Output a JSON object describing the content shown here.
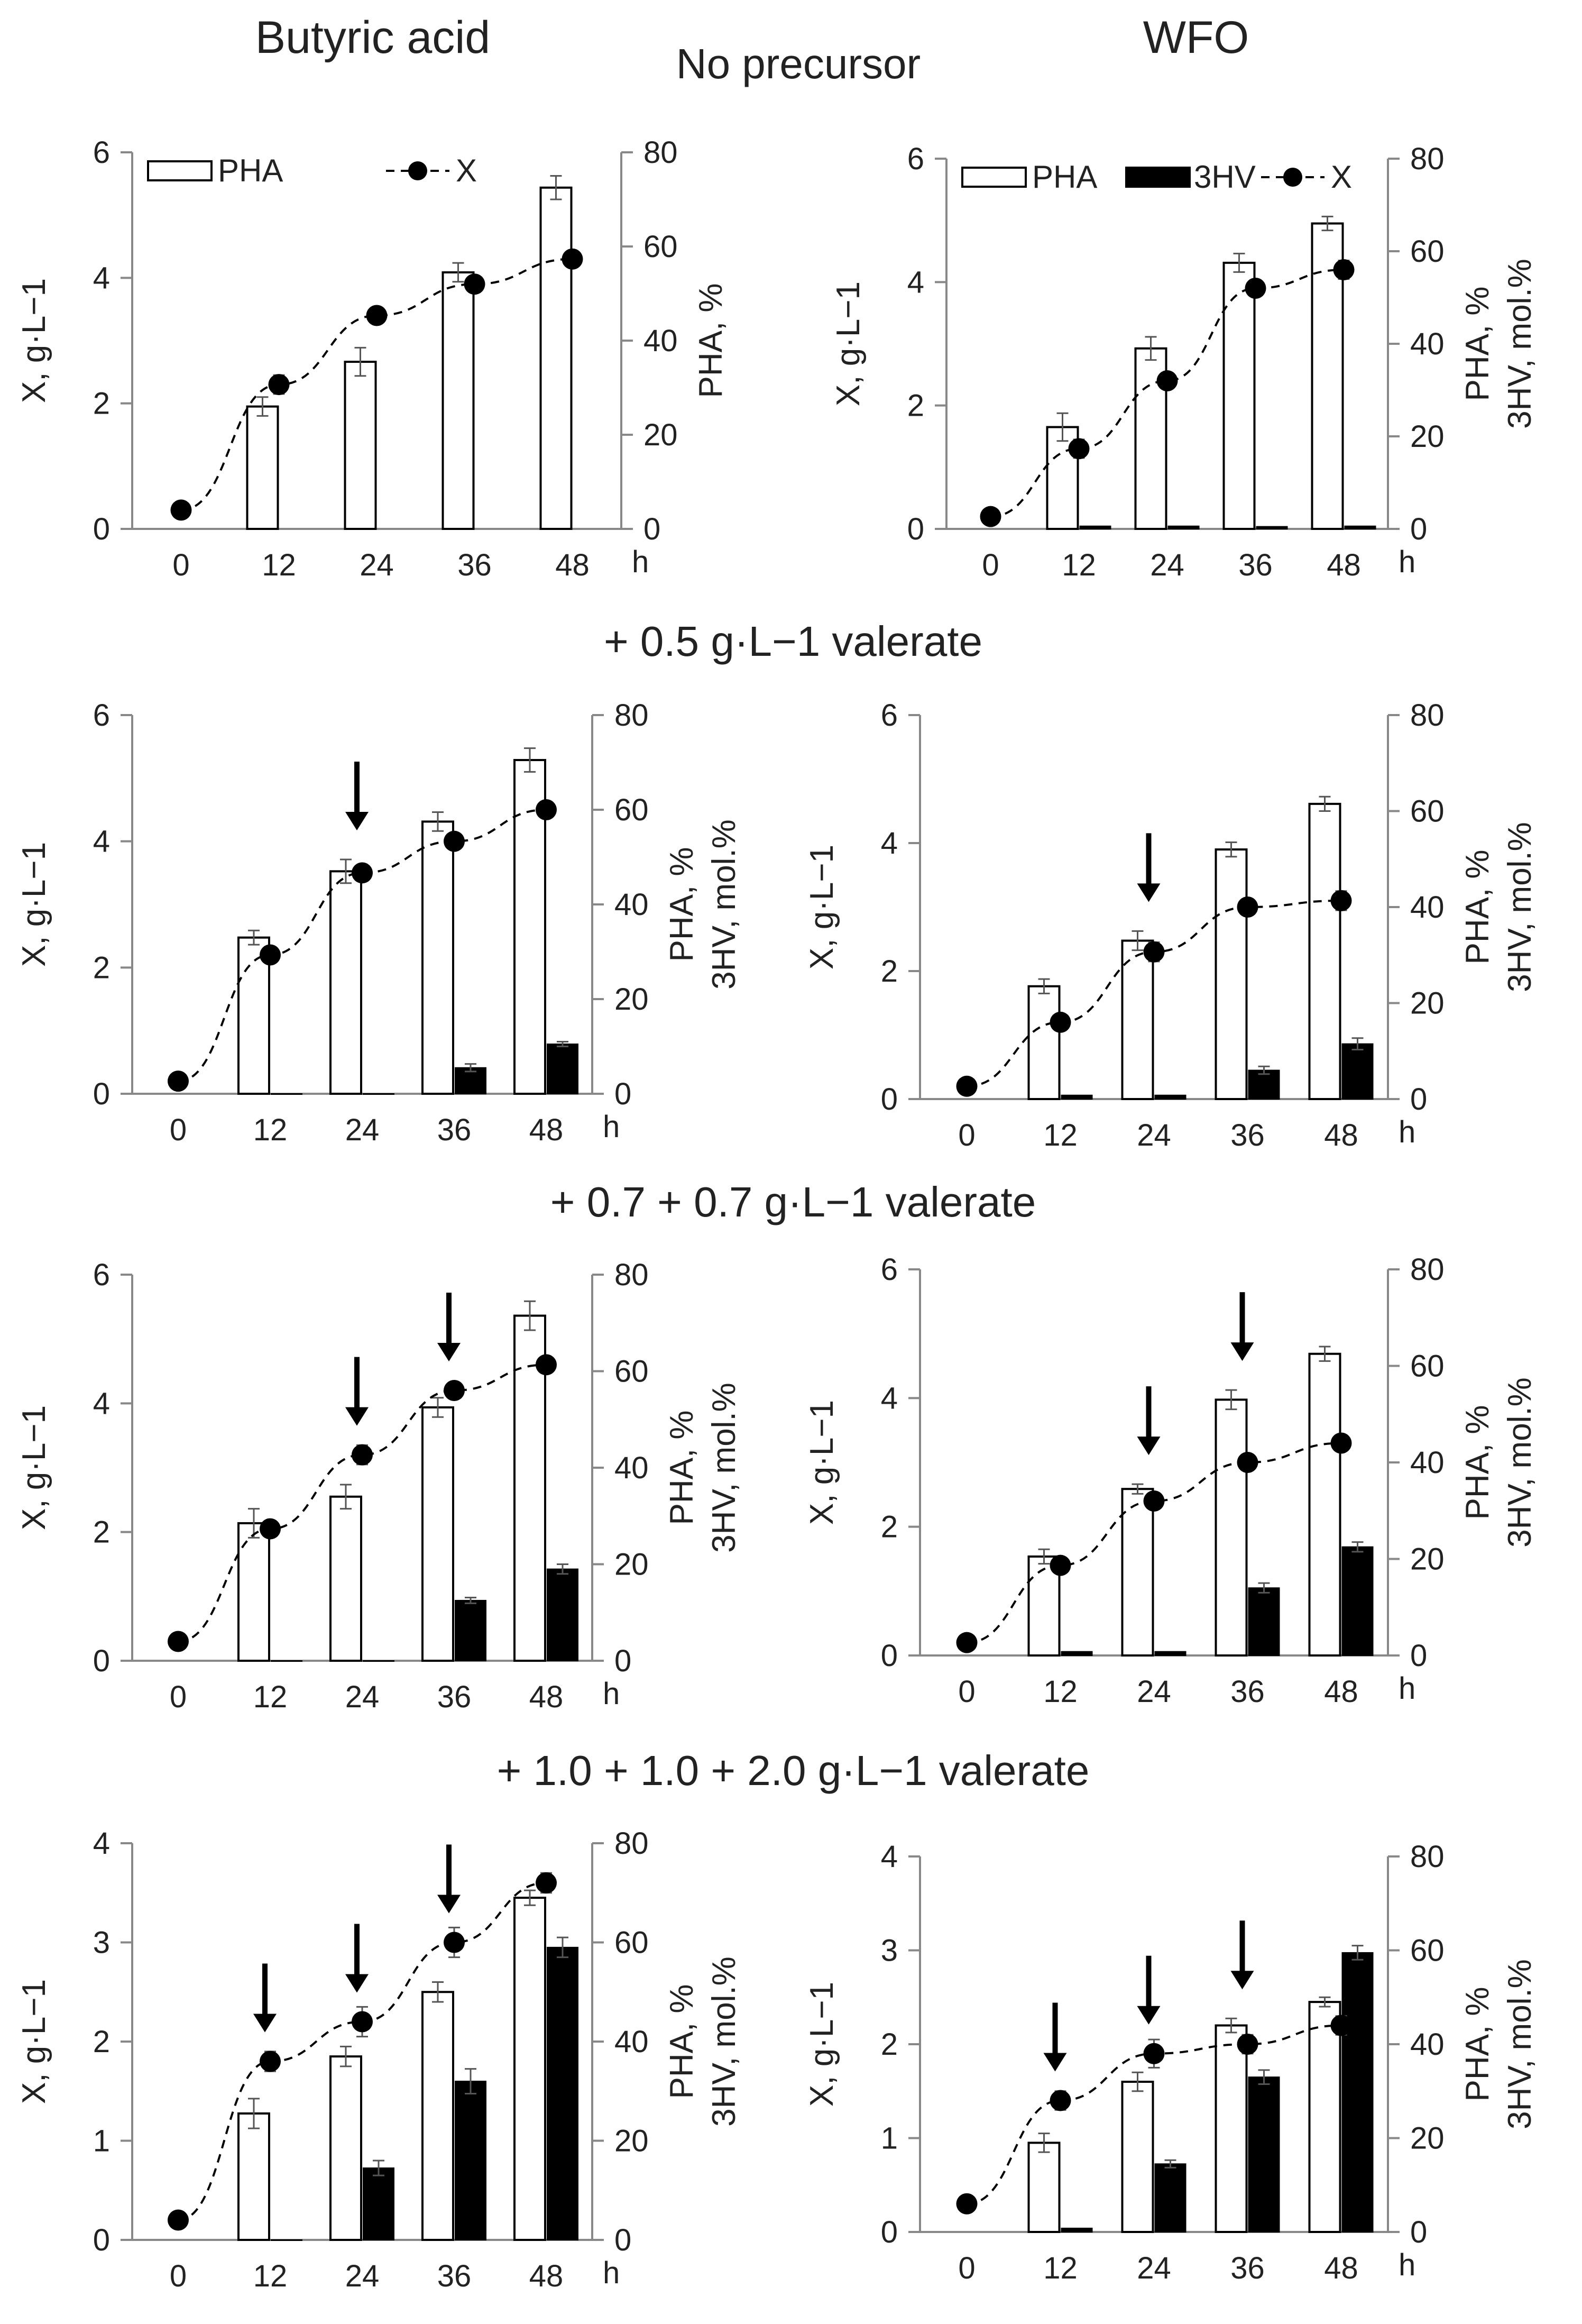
{
  "header": {
    "left_column": "Butyric acid",
    "middle": "No precursor",
    "right_column": "WFO"
  },
  "section_titles": [
    "+ 0.5 g·L−1 valerate",
    "+ 0.7 + 0.7 g·L−1 valerate",
    "+ 1.0 + 1.0 + 2.0 g·L−1 valerate"
  ],
  "legends": {
    "pha": "PHA",
    "hv": "3HV",
    "x": "X"
  },
  "colors": {
    "pha_fill": "#ffffff",
    "hv_fill": "#000000",
    "x_marker": "#000000",
    "axis": "#888888"
  },
  "chart_data": [
    {
      "type": "bar",
      "panel": "butyric-no-precursor",
      "categories": [
        "0",
        "12",
        "24",
        "36",
        "48"
      ],
      "x_unit": "h",
      "ylabel_left": "X, g·L−1",
      "ylabel_right": [
        "PHA, %"
      ],
      "ylim_left": [
        0,
        6
      ],
      "yticks_left": [
        0,
        2,
        4,
        6
      ],
      "ylim_right": [
        0,
        80
      ],
      "yticks_right": [
        0,
        20,
        40,
        60,
        80
      ],
      "legend": [
        "PHA",
        "X"
      ],
      "series": [
        {
          "name": "PHA",
          "axis": "right",
          "kind": "bar-open",
          "values": [
            null,
            26,
            35.5,
            54.5,
            72.5
          ],
          "errors": [
            0,
            2,
            3,
            2,
            2.5
          ]
        },
        {
          "name": "X",
          "axis": "left",
          "kind": "line-dashed-markers",
          "values": [
            0.3,
            2.3,
            3.4,
            3.9,
            4.3
          ],
          "errors": [
            0,
            0.15,
            0.12,
            0.1,
            0.1
          ]
        }
      ],
      "arrows": []
    },
    {
      "type": "bar",
      "panel": "wfo-no-precursor",
      "categories": [
        "0",
        "12",
        "24",
        "36",
        "48"
      ],
      "x_unit": "h",
      "ylabel_left": "X, g·L−1",
      "ylabel_right": [
        "PHA, %",
        "3HV, mol.%"
      ],
      "ylim_left": [
        0,
        6
      ],
      "yticks_left": [
        0,
        2,
        4,
        6
      ],
      "ylim_right": [
        0,
        80
      ],
      "yticks_right": [
        0,
        20,
        40,
        60,
        80
      ],
      "legend": [
        "PHA",
        "3HV",
        "X"
      ],
      "series": [
        {
          "name": "PHA",
          "axis": "right",
          "kind": "bar-open",
          "values": [
            null,
            22,
            39,
            57.5,
            66
          ],
          "errors": [
            0,
            3,
            2.5,
            2,
            1.5
          ]
        },
        {
          "name": "3HV",
          "axis": "right",
          "kind": "bar-filled",
          "values": [
            null,
            0.6,
            0.6,
            0.5,
            0.6
          ],
          "errors": [
            0,
            0,
            0,
            0,
            0
          ]
        },
        {
          "name": "X",
          "axis": "left",
          "kind": "line-dashed-markers",
          "values": [
            0.2,
            1.3,
            2.4,
            3.9,
            4.2
          ],
          "errors": [
            0,
            0.15,
            0.12,
            0.1,
            0.15
          ]
        }
      ],
      "arrows": []
    },
    {
      "type": "bar",
      "panel": "butyric-0.5-valerate",
      "categories": [
        "0",
        "12",
        "24",
        "36",
        "48"
      ],
      "x_unit": "h",
      "ylabel_left": "X, g·L−1",
      "ylabel_right": [
        "PHA, %",
        "3HV, mol.%"
      ],
      "ylim_left": [
        0,
        6
      ],
      "yticks_left": [
        0,
        2,
        4,
        6
      ],
      "ylim_right": [
        0,
        80
      ],
      "yticks_right": [
        0,
        20,
        40,
        60,
        80
      ],
      "legend": [],
      "series": [
        {
          "name": "PHA",
          "axis": "right",
          "kind": "bar-open",
          "values": [
            null,
            33,
            47,
            57.5,
            70.5
          ],
          "errors": [
            0,
            1.5,
            2.5,
            2,
            2.5
          ]
        },
        {
          "name": "3HV",
          "axis": "right",
          "kind": "bar-filled",
          "values": [
            null,
            0,
            0,
            5.5,
            10.5
          ],
          "errors": [
            0,
            0,
            0,
            0.8,
            0.5
          ]
        },
        {
          "name": "X",
          "axis": "left",
          "kind": "line-dashed-markers",
          "values": [
            0.2,
            2.2,
            3.5,
            4.0,
            4.5
          ],
          "errors": [
            0,
            0.1,
            0.1,
            0.1,
            0.1
          ]
        }
      ],
      "arrows": [
        "24"
      ]
    },
    {
      "type": "bar",
      "panel": "wfo-0.5-valerate",
      "categories": [
        "0",
        "12",
        "24",
        "36",
        "48"
      ],
      "x_unit": "h",
      "ylabel_left": "X, g·L−1",
      "ylabel_right": [
        "PHA, %",
        "3HV, mol.%"
      ],
      "ylim_left": [
        0,
        6
      ],
      "yticks_left": [
        0,
        2,
        4,
        6
      ],
      "ylim_right": [
        0,
        80
      ],
      "yticks_right": [
        0,
        20,
        40,
        60,
        80
      ],
      "legend": [],
      "series": [
        {
          "name": "PHA",
          "axis": "right",
          "kind": "bar-open",
          "values": [
            null,
            23.5,
            33,
            52,
            61.5
          ],
          "errors": [
            0,
            1.5,
            2,
            1.5,
            1.5
          ]
        },
        {
          "name": "3HV",
          "axis": "right",
          "kind": "bar-filled",
          "values": [
            null,
            0.8,
            0.8,
            6,
            11.5
          ],
          "errors": [
            0,
            0,
            0,
            0.8,
            1.2
          ]
        },
        {
          "name": "X",
          "axis": "left",
          "kind": "line-dashed-markers",
          "values": [
            0.2,
            1.2,
            2.3,
            3.0,
            3.1
          ],
          "errors": [
            0,
            0.1,
            0.15,
            0.1,
            0.15
          ]
        }
      ],
      "arrows": [
        "24"
      ]
    },
    {
      "type": "bar",
      "panel": "butyric-0.7-0.7-valerate",
      "categories": [
        "0",
        "12",
        "24",
        "36",
        "48"
      ],
      "x_unit": "h",
      "ylabel_left": "X, g·L−1",
      "ylabel_right": [
        "PHA, %",
        "3HV, mol.%"
      ],
      "ylim_left": [
        0,
        6
      ],
      "yticks_left": [
        0,
        2,
        4,
        6
      ],
      "ylim_right": [
        0,
        80
      ],
      "yticks_right": [
        0,
        20,
        40,
        60,
        80
      ],
      "legend": [],
      "series": [
        {
          "name": "PHA",
          "axis": "right",
          "kind": "bar-open",
          "values": [
            null,
            28.5,
            34,
            52.5,
            71.5
          ],
          "errors": [
            0,
            3,
            2.5,
            2,
            3
          ]
        },
        {
          "name": "3HV",
          "axis": "right",
          "kind": "bar-filled",
          "values": [
            null,
            0,
            0,
            12.5,
            19
          ],
          "errors": [
            0,
            0,
            0,
            0.6,
            1
          ]
        },
        {
          "name": "X",
          "axis": "left",
          "kind": "line-dashed-markers",
          "values": [
            0.3,
            2.05,
            3.2,
            4.2,
            4.6
          ],
          "errors": [
            0,
            0.1,
            0.15,
            0.1,
            0.1
          ]
        }
      ],
      "arrows": [
        "24",
        "36"
      ]
    },
    {
      "type": "bar",
      "panel": "wfo-0.7-0.7-valerate",
      "categories": [
        "0",
        "12",
        "24",
        "36",
        "48"
      ],
      "x_unit": "h",
      "ylabel_left": "X, g·L−1",
      "ylabel_right": [
        "PHA, %",
        "3HV, mol.%"
      ],
      "ylim_left": [
        0,
        6
      ],
      "yticks_left": [
        0,
        2,
        4,
        6
      ],
      "ylim_right": [
        0,
        80
      ],
      "yticks_right": [
        0,
        20,
        40,
        60,
        80
      ],
      "legend": [],
      "series": [
        {
          "name": "PHA",
          "axis": "right",
          "kind": "bar-open",
          "values": [
            null,
            20.5,
            34.5,
            53,
            62.5
          ],
          "errors": [
            0,
            1.5,
            1,
            2,
            1.5
          ]
        },
        {
          "name": "3HV",
          "axis": "right",
          "kind": "bar-filled",
          "values": [
            null,
            0.8,
            0.8,
            14,
            22.5
          ],
          "errors": [
            0,
            0,
            0,
            1,
            1
          ]
        },
        {
          "name": "X",
          "axis": "left",
          "kind": "line-dashed-markers",
          "values": [
            0.2,
            1.4,
            2.4,
            3.0,
            3.3
          ],
          "errors": [
            0,
            0.1,
            0.1,
            0.1,
            0.1
          ]
        }
      ],
      "arrows": [
        "24",
        "36"
      ]
    },
    {
      "type": "bar",
      "panel": "butyric-1.0-1.0-2.0-valerate",
      "categories": [
        "0",
        "12",
        "24",
        "36",
        "48"
      ],
      "x_unit": "h",
      "ylabel_left": "X, g·L−1",
      "ylabel_right": [
        "PHA, %",
        "3HV, mol.%"
      ],
      "ylim_left": [
        0,
        4
      ],
      "yticks_left": [
        0,
        1,
        2,
        3,
        4
      ],
      "ylim_right": [
        0,
        80
      ],
      "yticks_right": [
        0,
        20,
        40,
        60,
        80
      ],
      "legend": [],
      "series": [
        {
          "name": "PHA",
          "axis": "right",
          "kind": "bar-open",
          "values": [
            null,
            25.5,
            37,
            50,
            69
          ],
          "errors": [
            0,
            3,
            2,
            2,
            1.5
          ]
        },
        {
          "name": "3HV",
          "axis": "right",
          "kind": "bar-filled",
          "values": [
            null,
            0,
            14.5,
            32,
            59
          ],
          "errors": [
            0,
            0,
            1.5,
            2.5,
            2
          ]
        },
        {
          "name": "X",
          "axis": "left",
          "kind": "line-dashed-markers",
          "values": [
            0.2,
            1.8,
            2.2,
            3.0,
            3.6
          ],
          "errors": [
            0,
            0.1,
            0.15,
            0.15,
            0.1
          ]
        }
      ],
      "arrows": [
        "12",
        "24",
        "36"
      ]
    },
    {
      "type": "bar",
      "panel": "wfo-1.0-1.0-2.0-valerate",
      "categories": [
        "0",
        "12",
        "24",
        "36",
        "48"
      ],
      "x_unit": "h",
      "ylabel_left": "X, g·L−1",
      "ylabel_right": [
        "PHA, %",
        "3HV, mol.%"
      ],
      "ylim_left": [
        0,
        4
      ],
      "yticks_left": [
        0,
        1,
        2,
        3,
        4
      ],
      "ylim_right": [
        0,
        80
      ],
      "yticks_right": [
        0,
        20,
        40,
        60,
        80
      ],
      "legend": [],
      "series": [
        {
          "name": "PHA",
          "axis": "right",
          "kind": "bar-open",
          "values": [
            null,
            19,
            32,
            44,
            49
          ],
          "errors": [
            0,
            2,
            2,
            1.5,
            1
          ]
        },
        {
          "name": "3HV",
          "axis": "right",
          "kind": "bar-filled",
          "values": [
            null,
            0.8,
            14.5,
            33,
            59.5
          ],
          "errors": [
            0,
            0,
            0.8,
            1.5,
            1.5
          ]
        },
        {
          "name": "X",
          "axis": "left",
          "kind": "line-dashed-markers",
          "values": [
            0.3,
            1.4,
            1.9,
            2.0,
            2.2
          ],
          "errors": [
            0,
            0.1,
            0.15,
            0.1,
            0.1
          ]
        }
      ],
      "arrows": [
        "12",
        "24",
        "36"
      ]
    }
  ]
}
